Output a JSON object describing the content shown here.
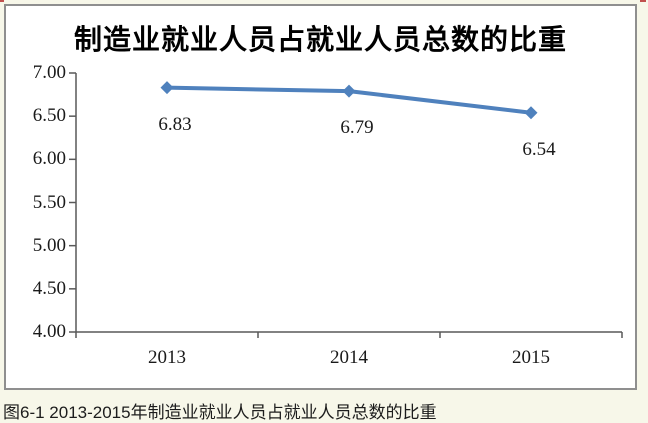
{
  "chart_data": {
    "type": "line",
    "title": "制造业就业人员占就业人员总数的比重",
    "categories": [
      "2013",
      "2014",
      "2015"
    ],
    "values": [
      6.83,
      6.79,
      6.54
    ],
    "value_labels": [
      "6.83",
      "6.79",
      "6.54"
    ],
    "y_tick_labels": [
      "7.00",
      "6.50",
      "6.00",
      "5.50",
      "5.00",
      "4.50",
      "4.00"
    ],
    "ylim": [
      4.0,
      7.0
    ],
    "y_tick_step": 0.5,
    "xlabel": "",
    "ylabel": "",
    "grid": false,
    "legend": "none",
    "data_label_position": "below",
    "marker": "diamond",
    "line_color": "#4F81BD",
    "axis_color": "#595959"
  },
  "caption": {
    "text": "图6-1 2013-2015年制造业就业人员占就业人员总数的比重"
  }
}
